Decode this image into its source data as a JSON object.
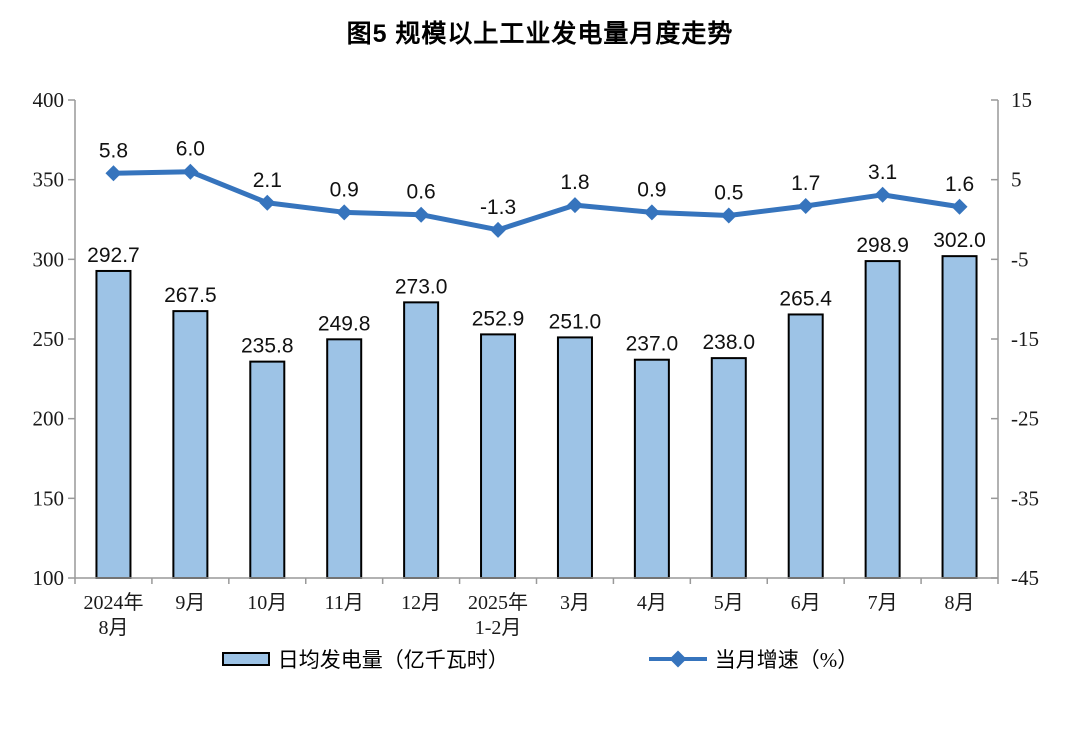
{
  "title": "图5  规模以上工业发电量月度走势",
  "chart_data": {
    "type": "combo",
    "title": "图5  规模以上工业发电量月度走势",
    "categories": [
      [
        "2024年",
        "8月"
      ],
      [
        "9月"
      ],
      [
        "10月"
      ],
      [
        "11月"
      ],
      [
        "12月"
      ],
      [
        "2025年",
        "1-2月"
      ],
      [
        "3月"
      ],
      [
        "4月"
      ],
      [
        "5月"
      ],
      [
        "6月"
      ],
      [
        "7月"
      ],
      [
        "8月"
      ]
    ],
    "series": [
      {
        "name": "日均发电量（亿千瓦时）",
        "type": "bar",
        "axis": "left",
        "values": [
          292.7,
          267.5,
          235.8,
          249.8,
          273.0,
          252.9,
          251.0,
          237.0,
          238.0,
          265.4,
          298.9,
          302.0
        ]
      },
      {
        "name": "当月增速（%）",
        "type": "line",
        "axis": "right",
        "values": [
          5.8,
          6.0,
          2.1,
          0.9,
          0.6,
          -1.3,
          1.8,
          0.9,
          0.5,
          1.7,
          3.1,
          1.6
        ]
      }
    ],
    "left_axis": {
      "min": 100,
      "max": 400,
      "ticks": [
        400,
        350,
        300,
        250,
        200,
        150,
        100
      ]
    },
    "right_axis": {
      "min": -45,
      "max": 15,
      "ticks": [
        15,
        5,
        -5,
        -15,
        -25,
        -35,
        -45
      ]
    },
    "grid": false,
    "legend_position": "bottom",
    "value_label_decimals": 1,
    "colors": {
      "bar_fill": "#9DC3E6",
      "bar_stroke": "#000000",
      "line": "#3674BD",
      "axis": "#999999",
      "text": "#000000"
    }
  }
}
